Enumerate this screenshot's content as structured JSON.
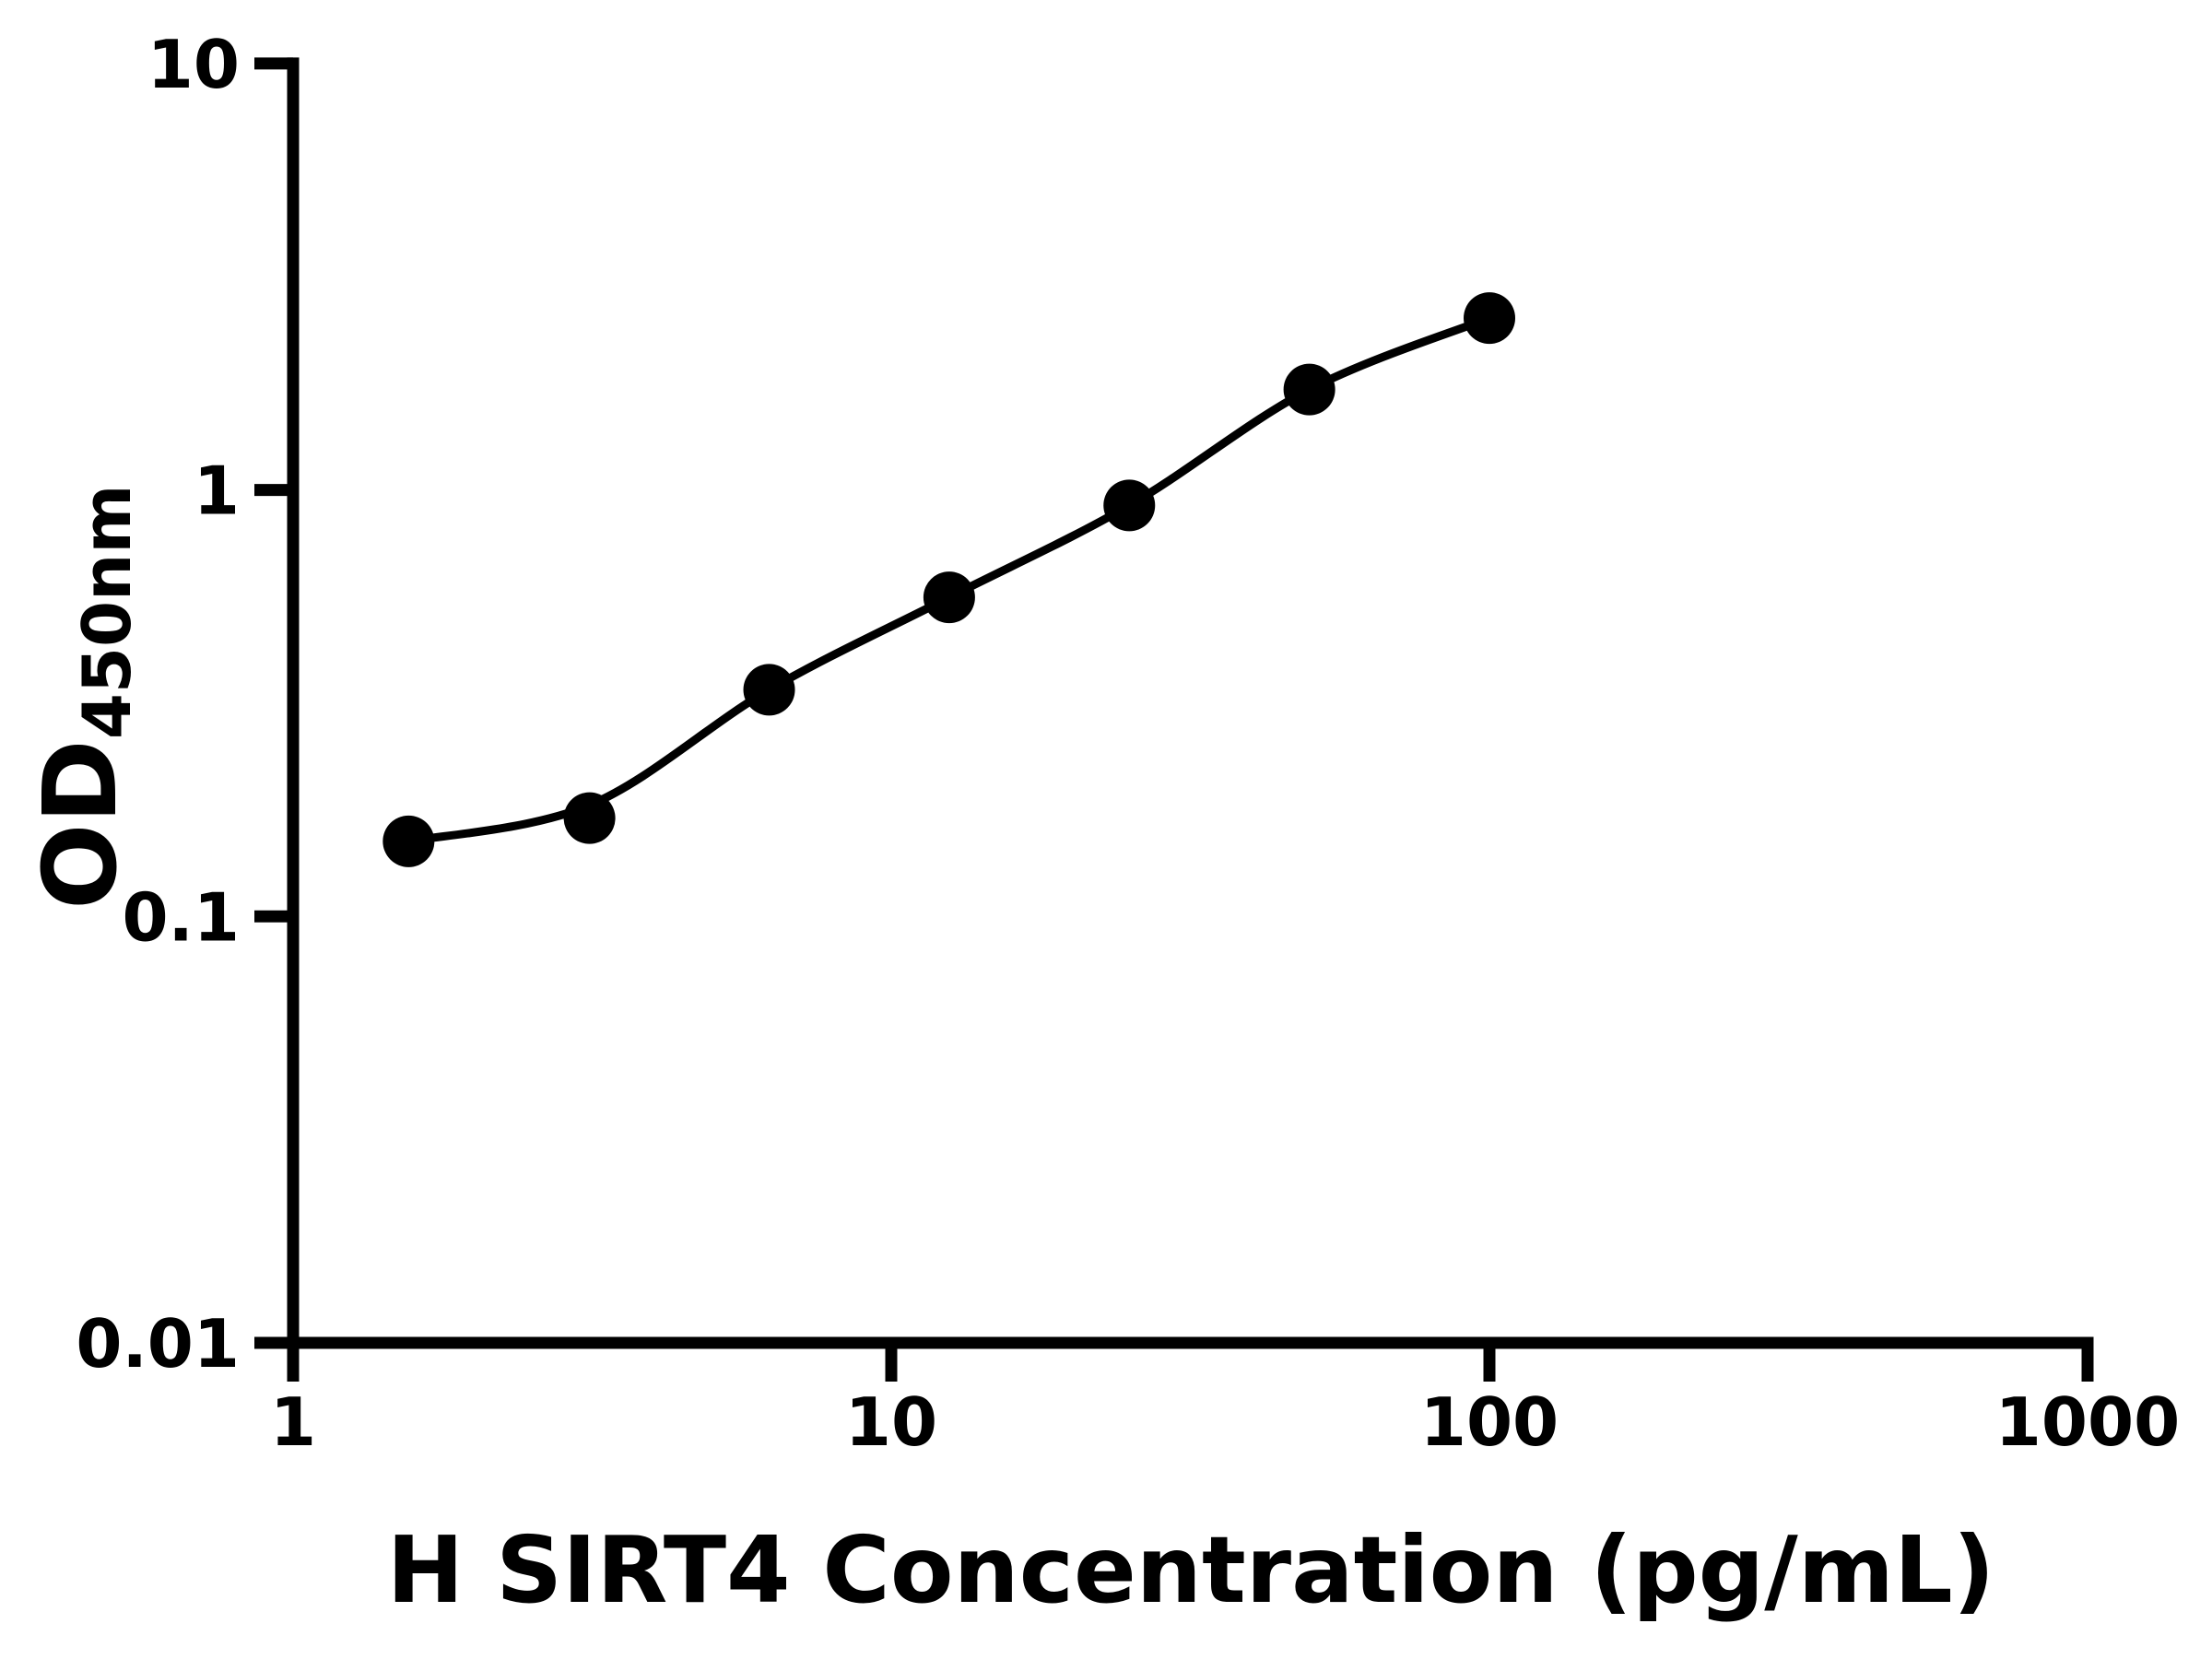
{
  "figure": {
    "background_color": "#ffffff",
    "foreground_color": "#000000"
  },
  "chart_data": {
    "type": "scatter",
    "subtype": "elisa-standard-curve-with-fit-line",
    "title": "",
    "xlabel": "H SIRT4 Concentration (pg/mL)",
    "ylabel_main": "OD",
    "ylabel_sub": "450nm",
    "x_scale": "log10",
    "y_scale": "log10",
    "xlim": [
      1,
      1000
    ],
    "ylim": [
      0.01,
      10
    ],
    "x_ticks": [
      1,
      10,
      100,
      1000
    ],
    "x_tick_labels": [
      "1",
      "10",
      "100",
      "1000"
    ],
    "y_ticks": [
      10,
      1,
      0.1,
      0.01
    ],
    "y_tick_labels": [
      "10",
      "1",
      "0.1",
      "0.01"
    ],
    "grid": false,
    "legend": false,
    "marker_color": "#000000",
    "line_color": "#000000",
    "points": [
      {
        "conc": 1.56,
        "od": 0.15
      },
      {
        "conc": 3.13,
        "od": 0.17
      },
      {
        "conc": 6.25,
        "od": 0.34
      },
      {
        "conc": 12.5,
        "od": 0.56
      },
      {
        "conc": 25,
        "od": 0.92
      },
      {
        "conc": 50,
        "od": 1.72
      },
      {
        "conc": 100,
        "od": 2.53
      }
    ]
  }
}
